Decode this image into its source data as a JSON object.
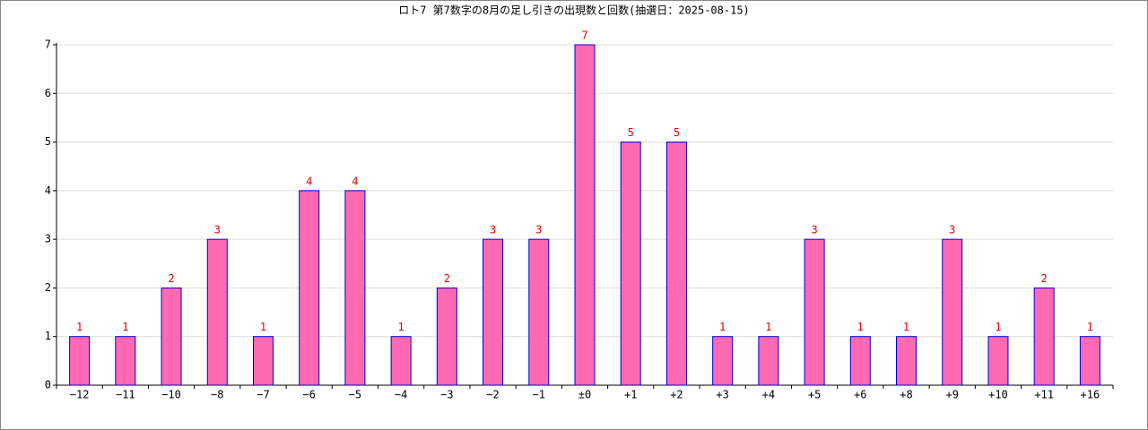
{
  "chart_data": {
    "type": "bar",
    "title": "ロト7 第7数字の8月の足し引きの出現数と回数(抽選日：2025-08-15)",
    "categories": [
      "−12",
      "−11",
      "−10",
      "−8",
      "−7",
      "−6",
      "−5",
      "−4",
      "−3",
      "−2",
      "−1",
      "±0",
      "+1",
      "+2",
      "+3",
      "+4",
      "+5",
      "+6",
      "+8",
      "+9",
      "+10",
      "+11",
      "+16"
    ],
    "values": [
      1,
      1,
      2,
      3,
      1,
      4,
      4,
      1,
      2,
      3,
      3,
      7,
      5,
      5,
      1,
      1,
      3,
      1,
      1,
      3,
      1,
      2,
      1
    ],
    "color": "#ff69b4",
    "edge_color": "#0000cc",
    "label_color": "#e00000",
    "ylim": [
      0,
      7
    ],
    "yticks": [
      0,
      1,
      2,
      3,
      4,
      5,
      6,
      7
    ],
    "grid": true
  }
}
